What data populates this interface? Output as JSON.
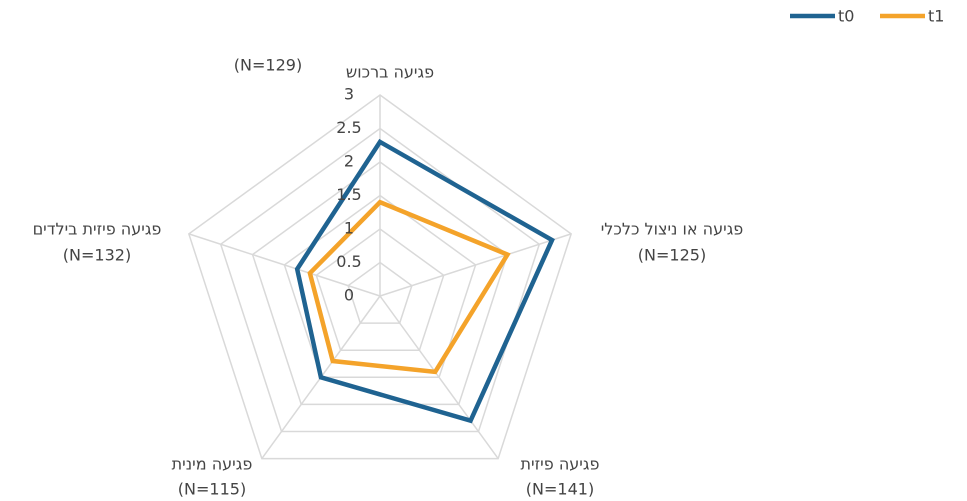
{
  "chart_data": {
    "type": "radar",
    "categories": [
      "פגיעה ברכוש",
      "פגיעה או ניצול כלכלי",
      "פגיעה פיזית",
      "פגיעה מינית",
      "פגיעה פיזית בילדים"
    ],
    "n_labels": [
      "(N=129)",
      "(N=125)",
      "(N=141)",
      "(N=115)",
      "(N=132)"
    ],
    "series": [
      {
        "name": "t0",
        "color": "#1f6391",
        "values": [
          2.3,
          2.7,
          2.3,
          1.5,
          1.3
        ]
      },
      {
        "name": "t1",
        "color": "#f4a32a",
        "values": [
          1.4,
          2.0,
          1.4,
          1.2,
          1.1
        ]
      }
    ],
    "ylim": [
      0,
      3
    ],
    "yticks": [
      0,
      0.5,
      1,
      1.5,
      2,
      2.5,
      3
    ],
    "grid": true,
    "legend": "top-right"
  }
}
